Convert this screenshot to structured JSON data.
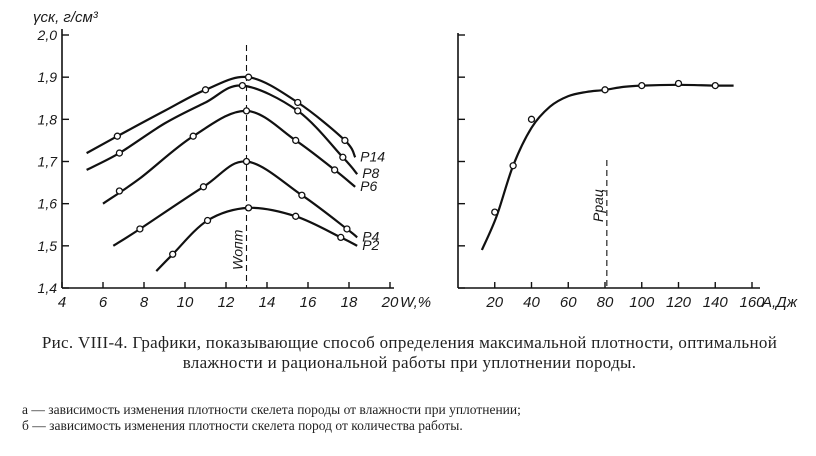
{
  "figure": {
    "caption_main": "Рис. VIII-4. Графики, показывающие способ определения максимальной плотности, оптимальной влажности и рациональной работы при уплотнении породы.",
    "caption_a": "а — зависимость изменения плотности скелета породы от влажности при уплотнении;",
    "caption_b": "б — зависимость изменения плотности скелета пород от количества работы."
  },
  "chart_data": [
    {
      "type": "line",
      "ylabel": "γск, г/см³",
      "xlabel": "W,%",
      "xlim": [
        4,
        20
      ],
      "ylim": [
        1.4,
        2.0
      ],
      "x_ticks": [
        "4",
        "6",
        "8",
        "10",
        "12",
        "14",
        "16",
        "18",
        "20"
      ],
      "y_ticks": [
        "1,4",
        "1,5",
        "1,6",
        "1,7",
        "1,8",
        "1,9",
        "2,0"
      ],
      "vline": {
        "x": 13,
        "label": "Wопт"
      },
      "series": [
        {
          "name": "P14",
          "x": [
            5.2,
            6.7,
            9.0,
            11.0,
            13.1,
            15.5,
            17.8,
            18.3
          ],
          "y": [
            1.72,
            1.76,
            1.82,
            1.87,
            1.9,
            1.84,
            1.75,
            1.71
          ],
          "markers": [
            [
              6.7,
              1.76
            ],
            [
              11.0,
              1.87
            ],
            [
              13.1,
              1.9
            ],
            [
              15.5,
              1.84
            ],
            [
              17.8,
              1.75
            ]
          ]
        },
        {
          "name": "P8",
          "x": [
            5.2,
            6.8,
            9.0,
            11.0,
            12.8,
            15.5,
            17.7,
            18.4
          ],
          "y": [
            1.68,
            1.72,
            1.79,
            1.84,
            1.88,
            1.82,
            1.71,
            1.67
          ],
          "markers": [
            [
              6.8,
              1.72
            ],
            [
              12.8,
              1.88
            ],
            [
              15.5,
              1.82
            ],
            [
              17.7,
              1.71
            ]
          ]
        },
        {
          "name": "P6",
          "x": [
            6.0,
            7.8,
            10.4,
            13.0,
            15.4,
            17.3,
            18.3
          ],
          "y": [
            1.6,
            1.66,
            1.76,
            1.82,
            1.75,
            1.68,
            1.64
          ],
          "markers": [
            [
              6.8,
              1.63
            ],
            [
              10.4,
              1.76
            ],
            [
              13.0,
              1.82
            ],
            [
              15.4,
              1.75
            ],
            [
              17.3,
              1.68
            ]
          ]
        },
        {
          "name": "P4",
          "x": [
            6.5,
            7.8,
            10.9,
            13.0,
            15.7,
            17.9,
            18.4
          ],
          "y": [
            1.5,
            1.54,
            1.64,
            1.7,
            1.62,
            1.54,
            1.52
          ],
          "markers": [
            [
              7.8,
              1.54
            ],
            [
              10.9,
              1.64
            ],
            [
              13.0,
              1.7
            ],
            [
              15.7,
              1.62
            ],
            [
              17.9,
              1.54
            ]
          ]
        },
        {
          "name": "P2",
          "x": [
            8.6,
            9.4,
            11.1,
            13.1,
            15.4,
            17.6,
            18.4
          ],
          "y": [
            1.44,
            1.48,
            1.56,
            1.59,
            1.57,
            1.52,
            1.5
          ],
          "markers": [
            [
              9.4,
              1.48
            ],
            [
              11.1,
              1.56
            ],
            [
              13.1,
              1.59
            ],
            [
              15.4,
              1.57
            ],
            [
              17.6,
              1.52
            ]
          ]
        }
      ]
    },
    {
      "type": "line",
      "xlabel": "А,Дж",
      "xlim": [
        0,
        160
      ],
      "ylim": [
        1.4,
        2.0
      ],
      "x_ticks": [
        "20",
        "40",
        "60",
        "80",
        "100",
        "120",
        "140",
        "160"
      ],
      "vline": {
        "x": 81,
        "label": "Pрац"
      },
      "series": [
        {
          "name": "",
          "x": [
            13,
            21,
            30,
            40,
            50,
            60,
            70,
            80,
            90,
            100,
            120,
            140,
            150
          ],
          "y": [
            1.49,
            1.57,
            1.69,
            1.78,
            1.83,
            1.855,
            1.865,
            1.87,
            1.877,
            1.88,
            1.882,
            1.88,
            1.88
          ],
          "markers": [
            [
              20,
              1.58
            ],
            [
              30,
              1.69
            ],
            [
              40,
              1.8
            ],
            [
              80,
              1.87
            ],
            [
              100,
              1.88
            ],
            [
              120,
              1.885
            ],
            [
              140,
              1.88
            ]
          ]
        }
      ]
    }
  ]
}
